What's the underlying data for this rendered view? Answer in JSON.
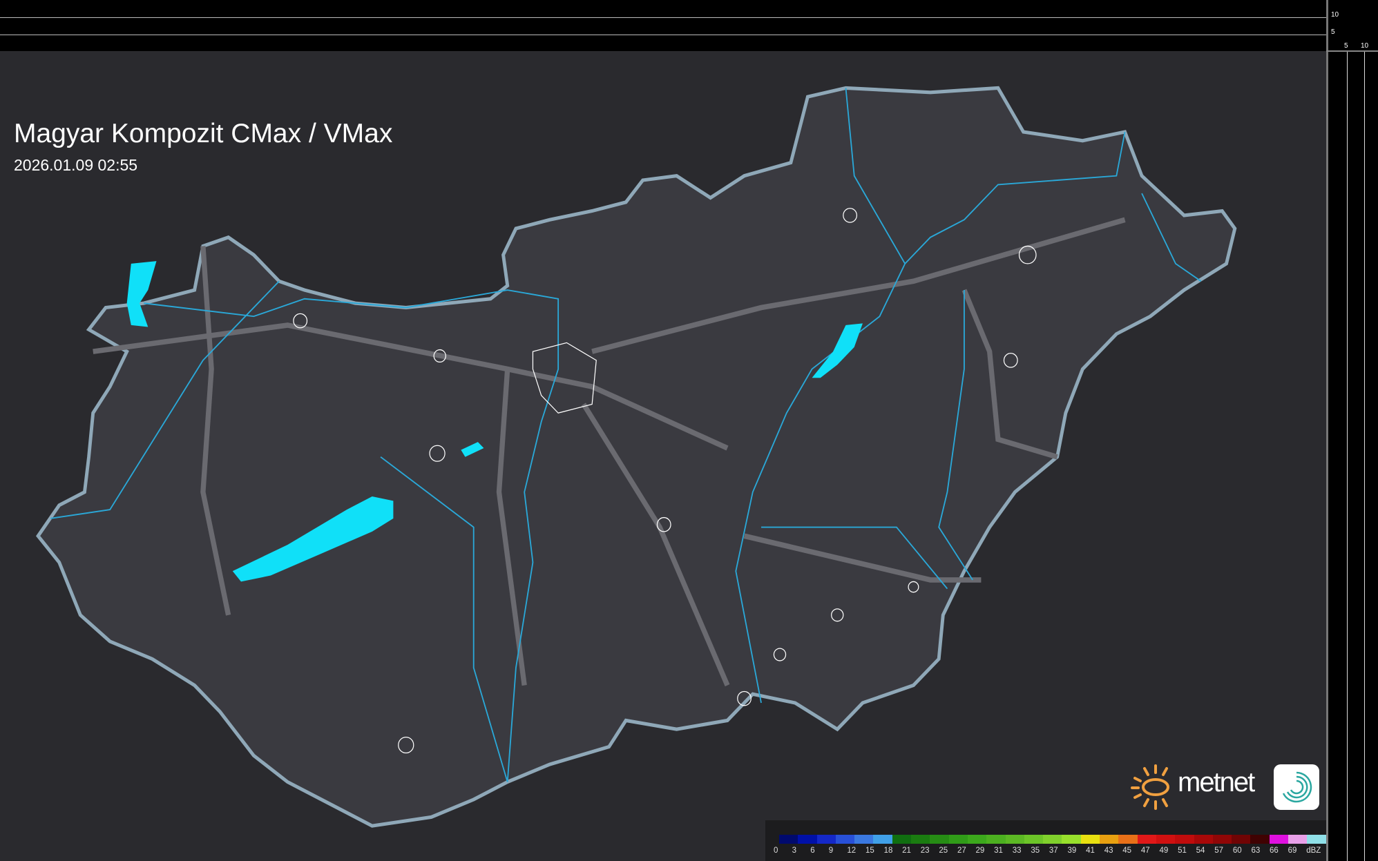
{
  "title": "Magyar Kompozit CMax / VMax",
  "timestamp": "2026.01.09 02:55",
  "profile_axes": {
    "top_ticks": [
      "10",
      "5"
    ],
    "right_ticks": [
      "5",
      "10"
    ]
  },
  "brand": {
    "name": "metnet",
    "accent": "#f0a040",
    "app_icon_color": "#2aa7a0"
  },
  "legend": {
    "unit": "dBZ",
    "labels": [
      "0",
      "3",
      "6",
      "9",
      "12",
      "15",
      "18",
      "21",
      "23",
      "25",
      "27",
      "29",
      "31",
      "33",
      "35",
      "37",
      "39",
      "41",
      "43",
      "45",
      "47",
      "49",
      "51",
      "54",
      "57",
      "60",
      "63",
      "66",
      "69"
    ],
    "colors": [
      "#000a6e",
      "#0010a8",
      "#1428c8",
      "#2850d8",
      "#3a78e0",
      "#40a0e8",
      "#106e10",
      "#1a7c10",
      "#268c14",
      "#309c18",
      "#3ca81c",
      "#4cb020",
      "#5cb824",
      "#6cc428",
      "#80d02c",
      "#98e02c",
      "#e8e010",
      "#e8a010",
      "#e87018",
      "#e01818",
      "#d01010",
      "#c00c0c",
      "#a80808",
      "#900606",
      "#700404",
      "#400202",
      "#e010e0",
      "#e8a0e8",
      "#90e0e8"
    ]
  },
  "map": {
    "land_color": "#3a3a40",
    "border_color": "#8fa8b8",
    "river_color": "#2aa8d8",
    "lake_color": "#10e0f8"
  }
}
